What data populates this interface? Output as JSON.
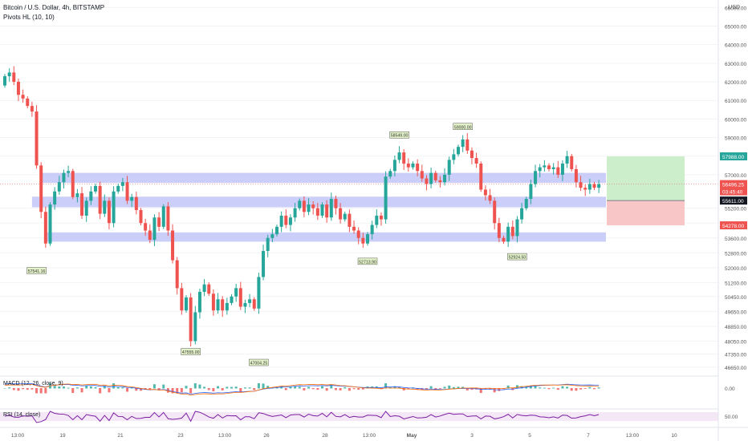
{
  "header": {
    "symbol_line": "Bitcoin / U.S. Dollar, 4h, BITSTAMP",
    "indicator_line": "Pivots HL (10, 10)",
    "currency": "USD"
  },
  "indicators": {
    "macd_label": "MACD (12, 26, close, 9)",
    "rsi_label": "RSI (14, close)",
    "macd_tick": "0.00",
    "rsi_tick": "50.00"
  },
  "colors": {
    "up": "#26a69a",
    "down": "#ef5350",
    "zone": "#b9bdf5",
    "target": "#c8ecc5",
    "stop": "#f7c0c0",
    "macd_line": "#2962ff",
    "signal_line": "#ff6d00",
    "rsi_line": "#7b1fa2",
    "label_bg": "#e3f2c8"
  },
  "chart_data": {
    "type": "candlestick",
    "title": "Bitcoin / U.S. Dollar, 4h, BITSTAMP",
    "ylim": [
      46300,
      66400
    ],
    "y_ticks": [
      "66000.00",
      "65000.00",
      "64000.00",
      "63000.00",
      "62000.00",
      "61000.00",
      "60000.00",
      "59000.00",
      "58000.00",
      "57000.00",
      "55200.00",
      "54400.00",
      "53600.00",
      "52800.00",
      "52000.00",
      "51200.00",
      "50450.00",
      "49650.00",
      "48850.00",
      "48050.00",
      "47350.00",
      "46650.00"
    ],
    "x_ticks": [
      "13:00",
      "19",
      "21",
      "23",
      "13:00",
      "26",
      "28",
      "13:00",
      "May",
      "3",
      "5",
      "7",
      "13:00",
      "10"
    ],
    "closes": [
      62300,
      62500,
      62000,
      61300,
      61100,
      60700,
      60400,
      57500,
      55000,
      53300,
      55400,
      56100,
      56600,
      57100,
      57200,
      55800,
      56000,
      54800,
      55600,
      56100,
      56400,
      54900,
      55600,
      54400,
      56100,
      56400,
      56600,
      55600,
      55800,
      55100,
      54400,
      54000,
      53500,
      54700,
      54200,
      55300,
      54000,
      52400,
      50900,
      49700,
      50400,
      48050,
      49600,
      50700,
      51100,
      50600,
      49700,
      50300,
      49700,
      50100,
      50450,
      50900,
      49900,
      50100,
      50300,
      49800,
      51500,
      52900,
      53600,
      53800,
      54200,
      54800,
      54300,
      54700,
      55200,
      55600,
      55000,
      55400,
      55200,
      54800,
      55400,
      54700,
      55700,
      55200,
      54600,
      54900,
      54200,
      54000,
      53600,
      53300,
      53800,
      54300,
      54800,
      54600,
      56900,
      57200,
      57800,
      58200,
      57600,
      57400,
      57600,
      57200,
      56800,
      56500,
      57100,
      56700,
      56600,
      57000,
      57800,
      58100,
      58500,
      58900,
      58300,
      57900,
      57600,
      56200,
      55900,
      55600,
      54400,
      53600,
      53400,
      54200,
      53700,
      54600,
      55200,
      55700,
      56500,
      57200,
      57400,
      57500,
      57300,
      57400,
      57000,
      57600,
      58000,
      57300,
      56600,
      56300,
      56200,
      56500,
      56300,
      56496
    ],
    "pivot_labels": [
      {
        "text": "57541.16",
        "bar": 7,
        "price": 51800,
        "side": "below"
      },
      {
        "text": "47555.00",
        "bar": 41,
        "price": 47440,
        "side": "below"
      },
      {
        "text": "47004.25",
        "bar": 56,
        "price": 46860,
        "side": "below"
      },
      {
        "text": "52713.90",
        "bar": 80,
        "price": 52300,
        "side": "below"
      },
      {
        "text": "58549.00",
        "bar": 87,
        "price": 59100,
        "side": "above"
      },
      {
        "text": "59000.00",
        "bar": 101,
        "price": 59550,
        "side": "above"
      },
      {
        "text": "52924.50",
        "bar": 113,
        "price": 52550,
        "side": "below"
      }
    ],
    "zones": [
      {
        "from_bar": 8,
        "price_low": 56560,
        "price_high": 57100
      },
      {
        "from_bar": 6,
        "price_low": 55250,
        "price_high": 55820
      },
      {
        "from_bar": 9,
        "price_low": 53400,
        "price_high": 53900
      }
    ],
    "position": {
      "from_bar": 132,
      "to_bar": 148,
      "target": 57988,
      "entry": 55611,
      "stop": 54278
    },
    "price_labels": [
      {
        "text": "57988.00",
        "price": 57988,
        "kind": "target"
      },
      {
        "text": "56496.25",
        "price": 56496,
        "kind": "last"
      },
      {
        "text": "03:45:40",
        "price": 56496,
        "kind": "countdown"
      },
      {
        "text": "55611.00",
        "price": 55611,
        "kind": "entry"
      },
      {
        "text": "54278.00",
        "price": 54278,
        "kind": "stop"
      }
    ]
  }
}
